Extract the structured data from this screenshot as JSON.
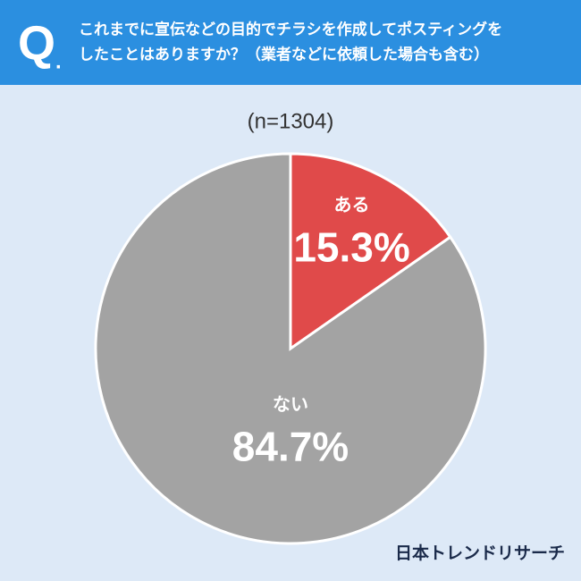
{
  "header": {
    "mark": "Q",
    "dot": ".",
    "question": [
      "これまでに宣伝などの目的でチラシを作成してポスティングを",
      "したことはありますか？（業者などに依頼した場合も含む）"
    ]
  },
  "chart_data": {
    "type": "pie",
    "subtitle": "(n=1304)",
    "categories": [
      "ある",
      "ない"
    ],
    "values": [
      15.3,
      84.7
    ],
    "value_labels": [
      "15.3%",
      "84.7%"
    ],
    "colors": [
      "#e04a4a",
      "#a3a3a3"
    ]
  },
  "footer": {
    "brand": "日本トレンドリサーチ"
  }
}
